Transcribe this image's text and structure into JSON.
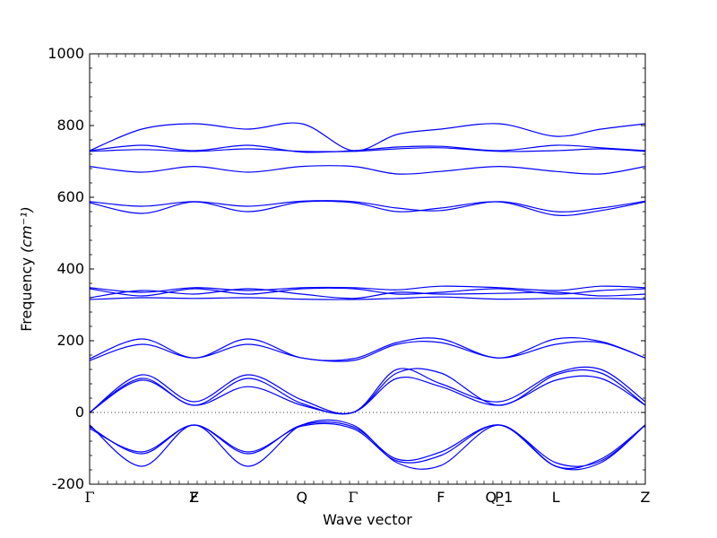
{
  "colors": {
    "band": "#0000ff",
    "axis": "#000000",
    "zeroline": "#000000",
    "background": "#ffffff"
  },
  "chart_data": {
    "type": "line",
    "title": "",
    "xlabel": "Wave vector",
    "ylabel": "Frequency",
    "ylabel_unit": "(cm⁻¹)",
    "ylim": [
      -200,
      1000
    ],
    "yticks": [
      -200,
      0,
      200,
      400,
      600,
      800,
      1000
    ],
    "zero_line": "dotted",
    "grid": false,
    "high_symmetry_points": [
      {
        "label": "Γ",
        "x": 0.0
      },
      {
        "label": "Z",
        "x": 0.188
      },
      {
        "label": "F",
        "x": 0.188
      },
      {
        "label": "Q",
        "x": 0.382
      },
      {
        "label": "Γ",
        "x": 0.474
      },
      {
        "label": "F",
        "x": 0.632
      },
      {
        "label": "P",
        "x": 0.737
      },
      {
        "label": "Q_1",
        "x": 0.737
      },
      {
        "label": "L",
        "x": 0.839
      },
      {
        "label": "Z",
        "x": 1.0
      }
    ],
    "series": [
      {
        "x": [
          0,
          0.094,
          0.188,
          0.285,
          0.382,
          0.474,
          0.553,
          0.632,
          0.737,
          0.839,
          0.92,
          1.0
        ],
        "values": [
          730,
          790,
          805,
          790,
          805,
          730,
          775,
          790,
          805,
          770,
          790,
          805
        ]
      },
      {
        "x": [
          0,
          0.094,
          0.188,
          0.285,
          0.382,
          0.474,
          0.553,
          0.632,
          0.737,
          0.839,
          0.92,
          1.0
        ],
        "values": [
          730,
          745,
          730,
          745,
          726,
          730,
          740,
          742,
          730,
          745,
          738,
          730
        ]
      },
      {
        "x": [
          0,
          0.094,
          0.188,
          0.285,
          0.382,
          0.474,
          0.553,
          0.632,
          0.737,
          0.839,
          0.92,
          1.0
        ],
        "values": [
          728,
          733,
          728,
          735,
          728,
          728,
          735,
          738,
          728,
          730,
          735,
          728
        ]
      },
      {
        "x": [
          0,
          0.094,
          0.188,
          0.285,
          0.382,
          0.474,
          0.553,
          0.632,
          0.737,
          0.839,
          0.92,
          1.0
        ],
        "values": [
          686,
          670,
          686,
          670,
          686,
          686,
          665,
          672,
          686,
          672,
          665,
          686
        ]
      },
      {
        "x": [
          0,
          0.094,
          0.188,
          0.285,
          0.382,
          0.474,
          0.553,
          0.632,
          0.737,
          0.839,
          0.92,
          1.0
        ],
        "values": [
          585,
          555,
          587,
          560,
          587,
          585,
          560,
          570,
          587,
          550,
          563,
          587
        ]
      },
      {
        "x": [
          0,
          0.094,
          0.188,
          0.285,
          0.382,
          0.474,
          0.553,
          0.632,
          0.737,
          0.839,
          0.92,
          1.0
        ],
        "values": [
          588,
          575,
          588,
          575,
          589,
          588,
          570,
          563,
          588,
          560,
          570,
          589
        ]
      },
      {
        "x": [
          0,
          0.094,
          0.188,
          0.285,
          0.382,
          0.474,
          0.553,
          0.632,
          0.737,
          0.839,
          0.92,
          1.0
        ],
        "values": [
          348,
          335,
          348,
          340,
          348,
          348,
          342,
          352,
          348,
          340,
          352,
          348
        ]
      },
      {
        "x": [
          0,
          0.094,
          0.188,
          0.285,
          0.382,
          0.474,
          0.553,
          0.632,
          0.737,
          0.839,
          0.92,
          1.0
        ],
        "values": [
          345,
          325,
          345,
          330,
          345,
          345,
          330,
          335,
          345,
          330,
          340,
          345
        ]
      },
      {
        "x": [
          0,
          0.094,
          0.188,
          0.285,
          0.382,
          0.474,
          0.553,
          0.632,
          0.737,
          0.839,
          0.92,
          1.0
        ],
        "values": [
          320,
          340,
          330,
          345,
          330,
          318,
          335,
          330,
          332,
          335,
          325,
          330
        ]
      },
      {
        "x": [
          0,
          0.094,
          0.188,
          0.285,
          0.382,
          0.474,
          0.553,
          0.632,
          0.737,
          0.839,
          0.92,
          1.0
        ],
        "values": [
          315,
          320,
          318,
          320,
          316,
          315,
          318,
          322,
          316,
          318,
          318,
          316
        ]
      },
      {
        "x": [
          0,
          0.094,
          0.188,
          0.285,
          0.382,
          0.474,
          0.553,
          0.632,
          0.737,
          0.839,
          0.92,
          1.0
        ],
        "values": [
          150,
          205,
          152,
          205,
          152,
          150,
          195,
          205,
          152,
          205,
          198,
          152
        ]
      },
      {
        "x": [
          0,
          0.094,
          0.188,
          0.285,
          0.382,
          0.474,
          0.553,
          0.632,
          0.737,
          0.839,
          0.92,
          1.0
        ],
        "values": [
          145,
          190,
          152,
          190,
          152,
          145,
          190,
          195,
          152,
          190,
          195,
          152
        ]
      },
      {
        "x": [
          0,
          0.094,
          0.188,
          0.285,
          0.382,
          0.474,
          0.553,
          0.632,
          0.737,
          0.839,
          0.92,
          1.0
        ],
        "values": [
          0,
          105,
          30,
          105,
          35,
          0,
          120,
          80,
          30,
          110,
          120,
          30
        ]
      },
      {
        "x": [
          0,
          0.094,
          0.188,
          0.285,
          0.382,
          0.474,
          0.553,
          0.632,
          0.737,
          0.839,
          0.92,
          1.0
        ],
        "values": [
          0,
          95,
          20,
          95,
          25,
          0,
          110,
          110,
          20,
          105,
          110,
          20
        ]
      },
      {
        "x": [
          0,
          0.094,
          0.188,
          0.285,
          0.382,
          0.474,
          0.553,
          0.632,
          0.737,
          0.839,
          0.92,
          1.0
        ],
        "values": [
          0,
          90,
          20,
          72,
          20,
          0,
          95,
          72,
          20,
          90,
          95,
          20
        ]
      },
      {
        "x": [
          0,
          0.094,
          0.188,
          0.285,
          0.382,
          0.474,
          0.553,
          0.632,
          0.737,
          0.839,
          0.92,
          1.0
        ],
        "values": [
          -45,
          -110,
          -35,
          -110,
          -38,
          -45,
          -135,
          -120,
          -35,
          -150,
          -130,
          -35
        ]
      },
      {
        "x": [
          0,
          0.094,
          0.188,
          0.285,
          0.382,
          0.474,
          0.553,
          0.632,
          0.737,
          0.839,
          0.92,
          1.0
        ],
        "values": [
          -40,
          -115,
          -35,
          -115,
          -35,
          -40,
          -130,
          -110,
          -35,
          -140,
          -135,
          -35
        ]
      },
      {
        "x": [
          0,
          0.094,
          0.188,
          0.285,
          0.382,
          0.474,
          0.553,
          0.632,
          0.737,
          0.839,
          0.92,
          1.0
        ],
        "values": [
          -35,
          -150,
          -35,
          -150,
          -35,
          -35,
          -140,
          -148,
          -35,
          -150,
          -140,
          -35
        ]
      }
    ]
  }
}
